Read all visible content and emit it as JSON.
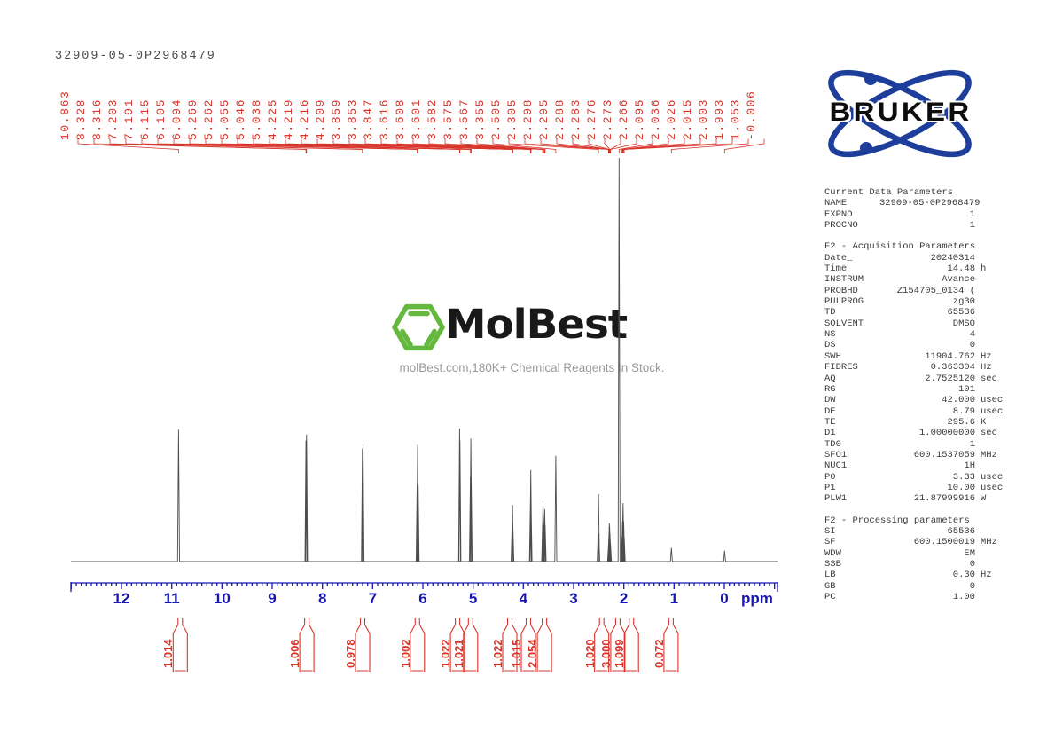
{
  "title": "32909-05-0P2968479",
  "watermark": {
    "brand": "MolBest",
    "tagline": "molBest.com,180K+ Chemical Reagents In Stock."
  },
  "bruker": {
    "label": "BRUKER"
  },
  "colors": {
    "red": "#d8342a",
    "axis_blue": "#1717b0",
    "bruker_blue": "#1d3f9b",
    "molbest_green": "#65b83e",
    "spectrum_gray": "#4d4d4d",
    "tagline_gray": "#9a9a9a"
  },
  "chart_data": {
    "type": "line",
    "title": "1H NMR spectrum 32909-05-0P2968479",
    "xlabel": "ppm",
    "ylabel": "",
    "x_range": [
      13.0,
      -1.05
    ],
    "x_ticks": [
      "12",
      "11",
      "10",
      "9",
      "8",
      "7",
      "6",
      "5",
      "4",
      "3",
      "2",
      "1",
      "0"
    ],
    "axis_unit_label": "ppm",
    "peak_labels": [
      "10.863",
      "8.328",
      "8.316",
      "7.203",
      "7.191",
      "6.115",
      "6.105",
      "6.094",
      "5.269",
      "5.262",
      "5.055",
      "5.046",
      "5.038",
      "4.225",
      "4.219",
      "4.216",
      "4.209",
      "3.859",
      "3.853",
      "3.847",
      "3.616",
      "3.608",
      "3.601",
      "3.582",
      "3.575",
      "3.567",
      "3.355",
      "2.505",
      "2.305",
      "2.298",
      "2.295",
      "2.288",
      "2.283",
      "2.276",
      "2.273",
      "2.266",
      "2.095",
      "2.036",
      "2.026",
      "2.015",
      "2.003",
      "1.993",
      "1.053",
      "-0.006"
    ],
    "peaks": [
      [
        10.863,
        0.327
      ],
      [
        8.328,
        0.3
      ],
      [
        8.316,
        0.315
      ],
      [
        7.203,
        0.28
      ],
      [
        7.191,
        0.291
      ],
      [
        6.115,
        0.19
      ],
      [
        6.105,
        0.289
      ],
      [
        6.094,
        0.19
      ],
      [
        5.269,
        0.33
      ],
      [
        5.262,
        0.3
      ],
      [
        5.055,
        0.21
      ],
      [
        5.046,
        0.305
      ],
      [
        5.038,
        0.21
      ],
      [
        4.225,
        0.09
      ],
      [
        4.219,
        0.14
      ],
      [
        4.216,
        0.14
      ],
      [
        4.209,
        0.09
      ],
      [
        3.859,
        0.15
      ],
      [
        3.853,
        0.227
      ],
      [
        3.847,
        0.15
      ],
      [
        3.616,
        0.1
      ],
      [
        3.608,
        0.15
      ],
      [
        3.601,
        0.11
      ],
      [
        3.582,
        0.09
      ],
      [
        3.575,
        0.13
      ],
      [
        3.567,
        0.09
      ],
      [
        3.355,
        0.262
      ],
      [
        2.512,
        0.07
      ],
      [
        2.505,
        0.167
      ],
      [
        2.498,
        0.07
      ],
      [
        2.305,
        0.04
      ],
      [
        2.298,
        0.06
      ],
      [
        2.295,
        0.07
      ],
      [
        2.288,
        0.095
      ],
      [
        2.283,
        0.088
      ],
      [
        2.276,
        0.07
      ],
      [
        2.273,
        0.058
      ],
      [
        2.266,
        0.045
      ],
      [
        2.095,
        1.0
      ],
      [
        2.036,
        0.06
      ],
      [
        2.026,
        0.1
      ],
      [
        2.015,
        0.145
      ],
      [
        2.003,
        0.1
      ],
      [
        1.993,
        0.06
      ],
      [
        1.053,
        0.034
      ],
      [
        -0.006,
        0.027
      ]
    ],
    "integrals": [
      {
        "value": "1.014",
        "ppm": 10.83
      },
      {
        "value": "1.006",
        "ppm": 8.31
      },
      {
        "value": "0.978",
        "ppm": 7.2
      },
      {
        "value": "1.002",
        "ppm": 6.11
      },
      {
        "value": "1.022",
        "ppm": 5.31
      },
      {
        "value": "1.021",
        "ppm": 5.05
      },
      {
        "value": "1.022",
        "ppm": 4.27
      },
      {
        "value": "1.015",
        "ppm": 3.9
      },
      {
        "value": "2.054",
        "ppm": 3.58
      },
      {
        "value": "1.020",
        "ppm": 2.44
      },
      {
        "value": "3.000",
        "ppm": 2.12
      },
      {
        "value": "1.099",
        "ppm": 1.85
      },
      {
        "value": "0.072",
        "ppm": 1.06
      }
    ]
  },
  "parameters": {
    "sections": [
      {
        "heading": "Current Data Parameters",
        "rows": [
          {
            "l": "NAME",
            "v": "32909-05-0P2968479",
            "u": ""
          },
          {
            "l": "EXPNO",
            "v": "1",
            "u": ""
          },
          {
            "l": "PROCNO",
            "v": "1",
            "u": ""
          }
        ]
      },
      {
        "heading": "F2 - Acquisition Parameters",
        "rows": [
          {
            "l": "Date_",
            "v": "20240314",
            "u": ""
          },
          {
            "l": "Time",
            "v": "14.48",
            "u": "h"
          },
          {
            "l": "INSTRUM",
            "v": "Avance",
            "u": ""
          },
          {
            "l": "PROBHD",
            "v": "Z154705_0134 (",
            "u": ""
          },
          {
            "l": "PULPROG",
            "v": "zg30",
            "u": ""
          },
          {
            "l": "TD",
            "v": "65536",
            "u": ""
          },
          {
            "l": "SOLVENT",
            "v": "DMSO",
            "u": ""
          },
          {
            "l": "NS",
            "v": "4",
            "u": ""
          },
          {
            "l": "DS",
            "v": "0",
            "u": ""
          },
          {
            "l": "SWH",
            "v": "11904.762",
            "u": "Hz"
          },
          {
            "l": "FIDRES",
            "v": "0.363304",
            "u": "Hz"
          },
          {
            "l": "AQ",
            "v": "2.7525120",
            "u": "sec"
          },
          {
            "l": "RG",
            "v": "101",
            "u": ""
          },
          {
            "l": "DW",
            "v": "42.000",
            "u": "usec"
          },
          {
            "l": "DE",
            "v": "8.79",
            "u": "usec"
          },
          {
            "l": "TE",
            "v": "295.6",
            "u": "K"
          },
          {
            "l": "D1",
            "v": "1.00000000",
            "u": "sec"
          },
          {
            "l": "TD0",
            "v": "1",
            "u": ""
          },
          {
            "l": "SFO1",
            "v": "600.1537059",
            "u": "MHz"
          },
          {
            "l": "NUC1",
            "v": "1H",
            "u": ""
          },
          {
            "l": "P0",
            "v": "3.33",
            "u": "usec"
          },
          {
            "l": "P1",
            "v": "10.00",
            "u": "usec"
          },
          {
            "l": "PLW1",
            "v": "21.87999916",
            "u": "W"
          }
        ]
      },
      {
        "heading": "F2 - Processing parameters",
        "rows": [
          {
            "l": "SI",
            "v": "65536",
            "u": ""
          },
          {
            "l": "SF",
            "v": "600.1500019",
            "u": "MHz"
          },
          {
            "l": "WDW",
            "v": "EM",
            "u": ""
          },
          {
            "l": "SSB",
            "v": "0",
            "u": ""
          },
          {
            "l": "LB",
            "v": "0.30",
            "u": "Hz"
          },
          {
            "l": "GB",
            "v": "0",
            "u": ""
          },
          {
            "l": "PC",
            "v": "1.00",
            "u": ""
          }
        ]
      }
    ]
  }
}
